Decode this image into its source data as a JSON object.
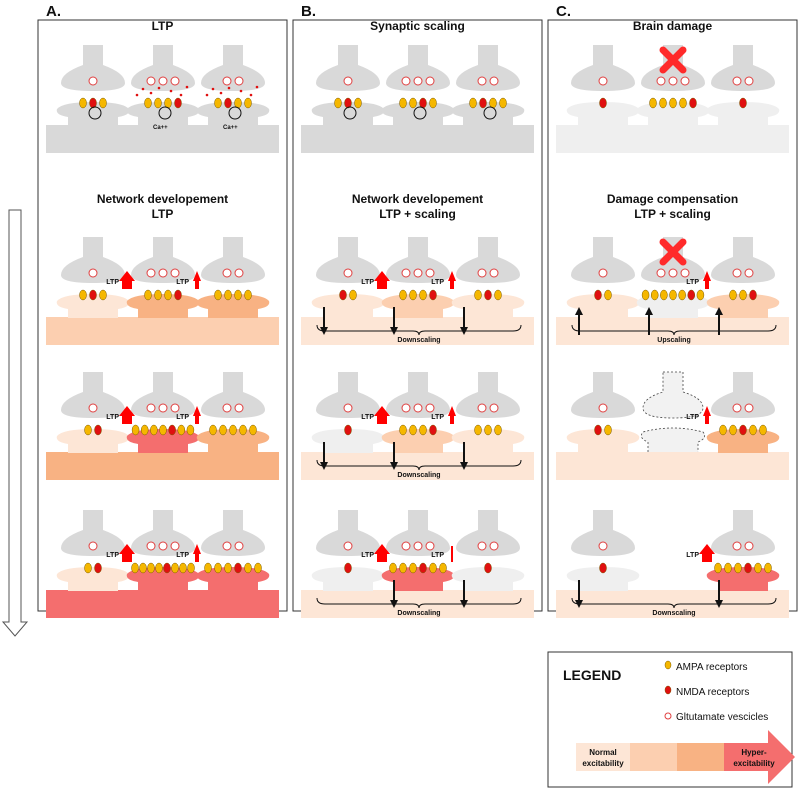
{
  "colors": {
    "neuron": "#d9d9d9",
    "damaged": "#efefef",
    "level1": "#fde6d6",
    "level2": "#fccfb0",
    "level3": "#f8b283",
    "level4": "#f46e6e",
    "ampa": "#f5b700",
    "nmda": "#e01010",
    "ltp_arrow": "#ff0000",
    "cross": "#ff2a2a"
  },
  "labels": {
    "ltp": "LTP",
    "ca": "Ca++"
  },
  "panels": [
    {
      "letter": "A.",
      "rows": [
        {
          "title": [
            "LTP"
          ],
          "base": "neuron",
          "synapses": [
            {
              "spine": "neuron",
              "rec": "ANA",
              "ves": 1,
              "circle": true
            },
            {
              "spine": "neuron",
              "rec": "AAAN",
              "ves": 3,
              "circle": true,
              "dots": true,
              "ca": true
            },
            {
              "spine": "neuron",
              "rec": "ANAA",
              "ves": 2,
              "circle": true,
              "dots": true,
              "ca": true
            }
          ]
        },
        {
          "title": [
            "Network developement",
            "LTP"
          ],
          "base": "level2",
          "synapses": [
            {
              "spine": "level1",
              "rec": "ANA",
              "ves": 1
            },
            {
              "spine": "level3",
              "rec": "AAAN",
              "ves": 3,
              "ltp": "big"
            },
            {
              "spine": "level3",
              "rec": "AAAA",
              "ves": 2,
              "ltp": "small"
            }
          ]
        },
        {
          "title": [],
          "base": "level3",
          "synapses": [
            {
              "spine": "level1",
              "rec": "AN",
              "ves": 1
            },
            {
              "spine": "level4",
              "rec": "AAAANAA",
              "ves": 3,
              "ltp": "big"
            },
            {
              "spine": "level3",
              "rec": "AAAAA",
              "ves": 2,
              "ltp": "small"
            }
          ]
        },
        {
          "title": [],
          "base": "level4",
          "synapses": [
            {
              "spine": "level1",
              "rec": "AN",
              "ves": 1
            },
            {
              "spine": "level4",
              "rec": "AAAANAAA",
              "ves": 3,
              "ltp": "big"
            },
            {
              "spine": "level4",
              "rec": "AAANAA",
              "ves": 2,
              "ltp": "small"
            }
          ]
        }
      ]
    },
    {
      "letter": "B.",
      "rows": [
        {
          "title": [
            "Synaptic scaling"
          ],
          "base": "neuron",
          "synapses": [
            {
              "spine": "neuron",
              "rec": "ANA",
              "ves": 1,
              "circle": true
            },
            {
              "spine": "neuron",
              "rec": "AANA",
              "ves": 3,
              "circle": true
            },
            {
              "spine": "neuron",
              "rec": "ANAA",
              "ves": 2,
              "circle": true
            }
          ]
        },
        {
          "title": [
            "Network developement",
            "LTP + scaling"
          ],
          "base": "level1",
          "scaling": "Downscaling",
          "synapses": [
            {
              "spine": "level1",
              "rec": "NA",
              "ves": 1,
              "scale": "down"
            },
            {
              "spine": "level2",
              "rec": "AAAN",
              "ves": 3,
              "ltp": "big",
              "scale": "down"
            },
            {
              "spine": "level1",
              "rec": "ANA",
              "ves": 2,
              "ltp": "small",
              "scale": "down"
            }
          ]
        },
        {
          "title": [],
          "base": "level1",
          "scaling": "Downscaling",
          "synapses": [
            {
              "spine": "damaged",
              "rec": "N",
              "ves": 1,
              "scale": "down"
            },
            {
              "spine": "level2",
              "rec": "AAAN",
              "ves": 3,
              "ltp": "big",
              "scale": "down"
            },
            {
              "spine": "level1",
              "rec": "AAA",
              "ves": 2,
              "ltp": "small",
              "scale": "down"
            }
          ]
        },
        {
          "title": [],
          "base": "level1",
          "scaling": "Downscaling",
          "synapses": [
            {
              "spine": "damaged",
              "rec": "N",
              "ves": 1
            },
            {
              "spine": "level4",
              "rec": "AAANAA",
              "ves": 3,
              "ltp": "big",
              "scale": "down"
            },
            {
              "spine": "damaged",
              "rec": "N",
              "ves": 2,
              "ltp": "tiny",
              "scale": "down"
            }
          ]
        }
      ]
    },
    {
      "letter": "C.",
      "rows": [
        {
          "title": [
            "Brain damage"
          ],
          "base": "damaged",
          "synapses": [
            {
              "spine": "damaged",
              "rec": "N",
              "ves": 1
            },
            {
              "spine": "damaged",
              "rec": "AAAAN",
              "ves": 3,
              "cross": true
            },
            {
              "spine": "damaged",
              "rec": "N",
              "ves": 2
            }
          ]
        },
        {
          "title": [
            "Damage compensation",
            "LTP + scaling"
          ],
          "base": "level1",
          "scaling": "Upscaling",
          "synapses": [
            {
              "spine": "level1",
              "rec": "NA",
              "ves": 1,
              "scale": "up"
            },
            {
              "spine": "damaged",
              "rec": "AAAAANA",
              "ves": 3,
              "cross": true,
              "scale": "up"
            },
            {
              "spine": "level2",
              "rec": "AAN",
              "ves": 2,
              "ltp": "small",
              "scale": "up"
            }
          ]
        },
        {
          "title": [],
          "base": "level1",
          "synapses": [
            {
              "spine": "level1",
              "rec": "NA",
              "ves": 1
            },
            {
              "dashed": true
            },
            {
              "spine": "level3",
              "rec": "AANAA",
              "ves": 2,
              "ltp": "small"
            }
          ]
        },
        {
          "title": [],
          "base": "level1",
          "scaling": "Downscaling",
          "synapses": [
            {
              "spine": "damaged",
              "rec": "N",
              "ves": 1,
              "scale": "down"
            },
            {
              "none": true
            },
            {
              "spine": "level4",
              "rec": "AAANAA",
              "ves": 2,
              "ltp": "big",
              "scale": "down"
            }
          ]
        }
      ]
    }
  ],
  "legend": {
    "title": "LEGEND",
    "items": [
      {
        "label": "AMPA receptors",
        "kind": "ampa"
      },
      {
        "label": "NMDA receptors",
        "kind": "nmda"
      },
      {
        "label": "Gltutamate vescicles",
        "kind": "vesicle"
      }
    ],
    "scale_start": [
      "Normal",
      "excitability"
    ],
    "scale_end": [
      "Hyper-",
      "excitability"
    ]
  }
}
